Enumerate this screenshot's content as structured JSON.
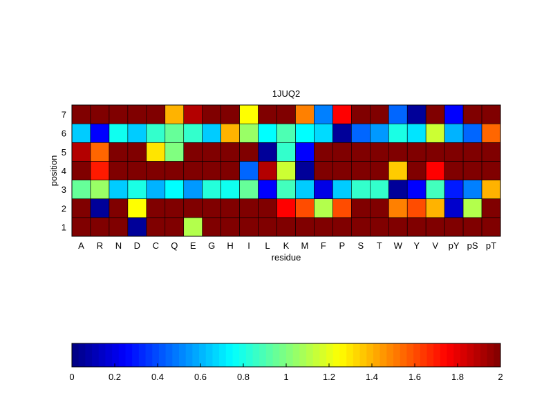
{
  "chart_data": {
    "type": "heatmap",
    "title": "1JUQ2",
    "xlabel": "residue",
    "ylabel": "position",
    "x_categories": [
      "A",
      "R",
      "N",
      "D",
      "C",
      "Q",
      "E",
      "G",
      "H",
      "I",
      "L",
      "K",
      "M",
      "F",
      "P",
      "S",
      "T",
      "W",
      "Y",
      "V",
      "pY",
      "pS",
      "pT"
    ],
    "y_categories": [
      "1",
      "2",
      "3",
      "4",
      "5",
      "6",
      "7"
    ],
    "colormap": "jet",
    "clim": [
      0,
      2
    ],
    "colorbar": {
      "placement": "bottom",
      "ticks": [
        "0",
        "0.2",
        "0.4",
        "0.6",
        "0.8",
        "1",
        "1.2",
        "1.4",
        "1.6",
        "1.8",
        "2"
      ]
    },
    "values_by_position": {
      "7": [
        2,
        2,
        2,
        2,
        2,
        1.4,
        1.9,
        2,
        2,
        1.25,
        2,
        2,
        1.5,
        0.5,
        1.75,
        2,
        2,
        0.45,
        0.05,
        2,
        0.25,
        2,
        2
      ],
      "6": [
        0.65,
        0.25,
        0.78,
        0.65,
        0.85,
        0.95,
        0.85,
        0.65,
        1.4,
        1.05,
        0.75,
        0.9,
        0.75,
        0.68,
        0.05,
        0.45,
        0.55,
        0.8,
        0.7,
        1.15,
        0.6,
        0.45,
        1.55
      ],
      "5": [
        1.9,
        1.55,
        2,
        2,
        1.3,
        1.0,
        2,
        2,
        2,
        2,
        0.05,
        0.85,
        0.25,
        2,
        2,
        2,
        2,
        2,
        2,
        2,
        2,
        2,
        2
      ],
      "4": [
        2,
        1.7,
        2,
        2,
        2,
        2,
        2,
        2,
        2,
        0.45,
        1.9,
        1.15,
        0.05,
        2,
        2,
        2,
        2,
        1.35,
        2,
        1.75,
        2,
        2,
        2
      ],
      "3": [
        0.95,
        1.05,
        0.65,
        0.8,
        0.6,
        0.75,
        0.55,
        0.82,
        0.78,
        0.95,
        0.25,
        0.88,
        0.65,
        0.2,
        0.65,
        0.85,
        0.85,
        0.05,
        0.25,
        0.88,
        0.3,
        0.5,
        1.4
      ],
      "2": [
        2,
        0.05,
        2,
        1.25,
        2,
        2,
        2,
        2,
        2,
        2,
        2,
        1.75,
        1.6,
        1.1,
        1.6,
        2,
        2,
        1.5,
        1.6,
        1.4,
        0.15,
        1.1,
        2
      ],
      "1": [
        2,
        2,
        2,
        0.05,
        2,
        2,
        1.1,
        2,
        2,
        2,
        2,
        2,
        2,
        2,
        2,
        2,
        2,
        2,
        2,
        2,
        2,
        2,
        2
      ]
    }
  }
}
